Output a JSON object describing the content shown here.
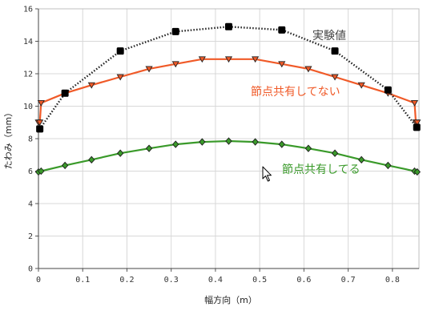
{
  "chart_data": {
    "type": "line",
    "xlabel": "幅方向（m）",
    "ylabel": "たわみ（mm）",
    "xlim": [
      0,
      0.86
    ],
    "ylim": [
      0,
      16
    ],
    "x_ticks": [
      0,
      0.1,
      0.2,
      0.3,
      0.4,
      0.5,
      0.6,
      0.7,
      0.8
    ],
    "x_tick_labels": [
      "0",
      "0.1",
      "0.2",
      "0.3",
      "0.4",
      "0.5",
      "0.6",
      "0.7",
      "0.8"
    ],
    "y_ticks": [
      0,
      2,
      4,
      6,
      8,
      10,
      12,
      14,
      16
    ],
    "y_tick_labels": [
      "0",
      "2",
      "4",
      "6",
      "8",
      "10",
      "12",
      "14",
      "16"
    ],
    "grid": true,
    "series": [
      {
        "name": "実験値",
        "color": "#222222",
        "line_style": "dotted",
        "marker": "square",
        "x": [
          0.003,
          0.06,
          0.185,
          0.31,
          0.43,
          0.55,
          0.67,
          0.79,
          0.855
        ],
        "y": [
          8.6,
          10.8,
          13.4,
          14.6,
          14.9,
          14.7,
          13.4,
          11.0,
          8.7
        ]
      },
      {
        "name": "節点共有してない",
        "color": "#f05a28",
        "line_style": "solid",
        "marker": "triangle-down",
        "x": [
          0,
          0.003,
          0.006,
          0.06,
          0.12,
          0.185,
          0.25,
          0.31,
          0.37,
          0.43,
          0.49,
          0.55,
          0.61,
          0.67,
          0.73,
          0.79,
          0.85,
          0.853,
          0.856
        ],
        "y": [
          9.0,
          9.0,
          10.2,
          10.8,
          11.3,
          11.8,
          12.3,
          12.6,
          12.9,
          12.9,
          12.9,
          12.6,
          12.3,
          11.8,
          11.3,
          10.8,
          10.2,
          9.0,
          9.0
        ]
      },
      {
        "name": "節点共有してる",
        "color": "#3a9a2a",
        "line_style": "solid",
        "marker": "diamond",
        "x": [
          0,
          0.006,
          0.06,
          0.12,
          0.185,
          0.25,
          0.31,
          0.37,
          0.43,
          0.49,
          0.55,
          0.61,
          0.67,
          0.73,
          0.79,
          0.85,
          0.856
        ],
        "y": [
          5.95,
          6.0,
          6.35,
          6.7,
          7.1,
          7.4,
          7.65,
          7.8,
          7.85,
          7.8,
          7.65,
          7.4,
          7.1,
          6.7,
          6.35,
          6.0,
          5.95
        ]
      }
    ]
  }
}
